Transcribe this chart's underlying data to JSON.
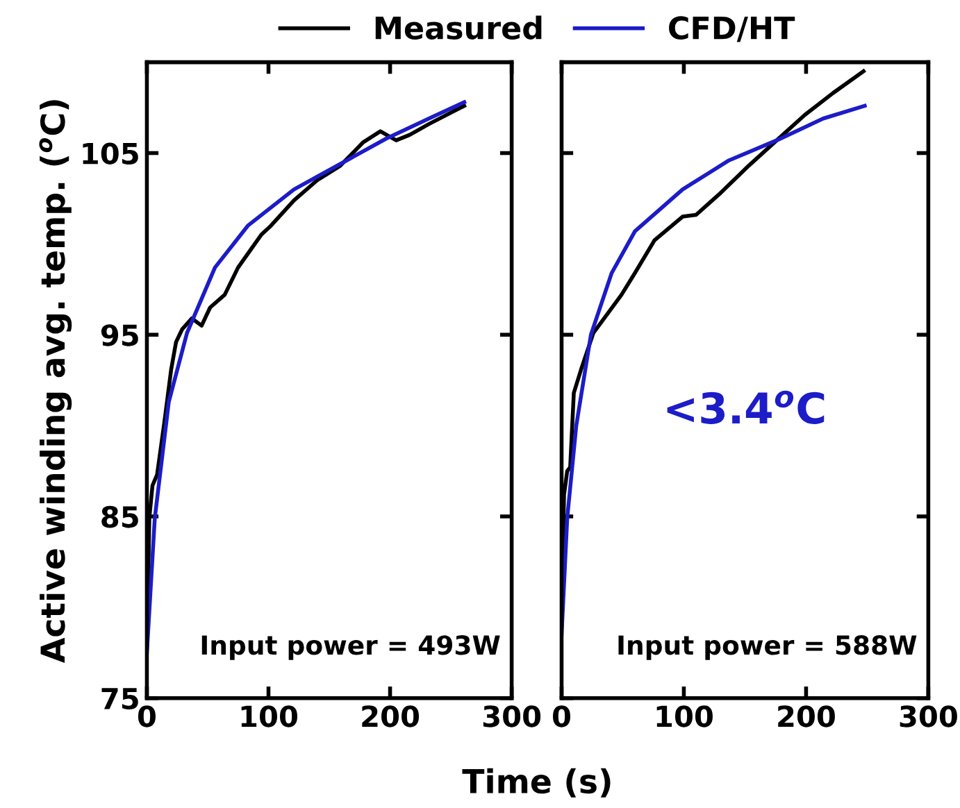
{
  "chart_data": [
    {
      "type": "line",
      "xlabel": "Time (s)",
      "ylabel": "Active winding avg. temp. ($^{o}$C)",
      "xlim": [
        0,
        300
      ],
      "ylim": [
        75,
        110
      ],
      "xticks": [
        0,
        100,
        200,
        300
      ],
      "yticks": [
        75,
        85,
        95,
        105
      ],
      "legend": "top",
      "annotations": [
        "Input power = 493W"
      ],
      "series": [
        {
          "name": "Measured",
          "color": "#000000",
          "x": [
            0,
            2,
            4.6,
            8.4,
            14,
            20,
            24,
            29,
            37,
            45,
            52,
            64,
            75,
            94,
            102,
            121,
            140,
            159,
            178,
            192,
            205,
            216,
            232,
            255,
            261
          ],
          "values": [
            77.8,
            84.9,
            86.7,
            87.3,
            90,
            93.1,
            94.6,
            95.3,
            95.9,
            95.5,
            96.5,
            97.2,
            98.7,
            100.5,
            101,
            102.4,
            103.5,
            104.3,
            105.6,
            106.2,
            105.7,
            106,
            106.6,
            107.4,
            107.6
          ]
        },
        {
          "name": "CFD/HT",
          "color": "#1c1cc8",
          "x": [
            0,
            6.5,
            18,
            33,
            56,
            83,
            121,
            159,
            197,
            235,
            261
          ],
          "values": [
            77.5,
            84.9,
            91.3,
            95.1,
            98.7,
            101,
            103,
            104.4,
            105.8,
            107,
            107.8
          ]
        }
      ]
    },
    {
      "type": "line",
      "xlim": [
        0,
        300
      ],
      "ylim": [
        75,
        110
      ],
      "xticks": [
        0,
        100,
        200,
        300
      ],
      "yticks": [
        75,
        85,
        95,
        105
      ],
      "tick_labels": "x",
      "annotations": [
        "Input power = 588W",
        "<3.4$^{o}$C"
      ],
      "series": [
        {
          "color": "#000000",
          "x": [
            0,
            2,
            4.6,
            7,
            10,
            16,
            26,
            37,
            49,
            60,
            76,
            99,
            110,
            130,
            153,
            176,
            199,
            222,
            247
          ],
          "values": [
            79,
            86.2,
            87.5,
            87.7,
            91.8,
            93.1,
            95.1,
            96.1,
            97.2,
            98.4,
            100.2,
            101.5,
            101.6,
            102.8,
            104.3,
            105.7,
            107.1,
            108.3,
            109.5
          ]
        },
        {
          "color": "#1c1cc8",
          "x": [
            0,
            4.6,
            12,
            24,
            41,
            60,
            99,
            137,
            176,
            214,
            248
          ],
          "values": [
            78.5,
            84.9,
            90,
            95,
            98.4,
            100.7,
            103,
            104.6,
            105.7,
            106.9,
            107.6
          ]
        }
      ]
    }
  ]
}
